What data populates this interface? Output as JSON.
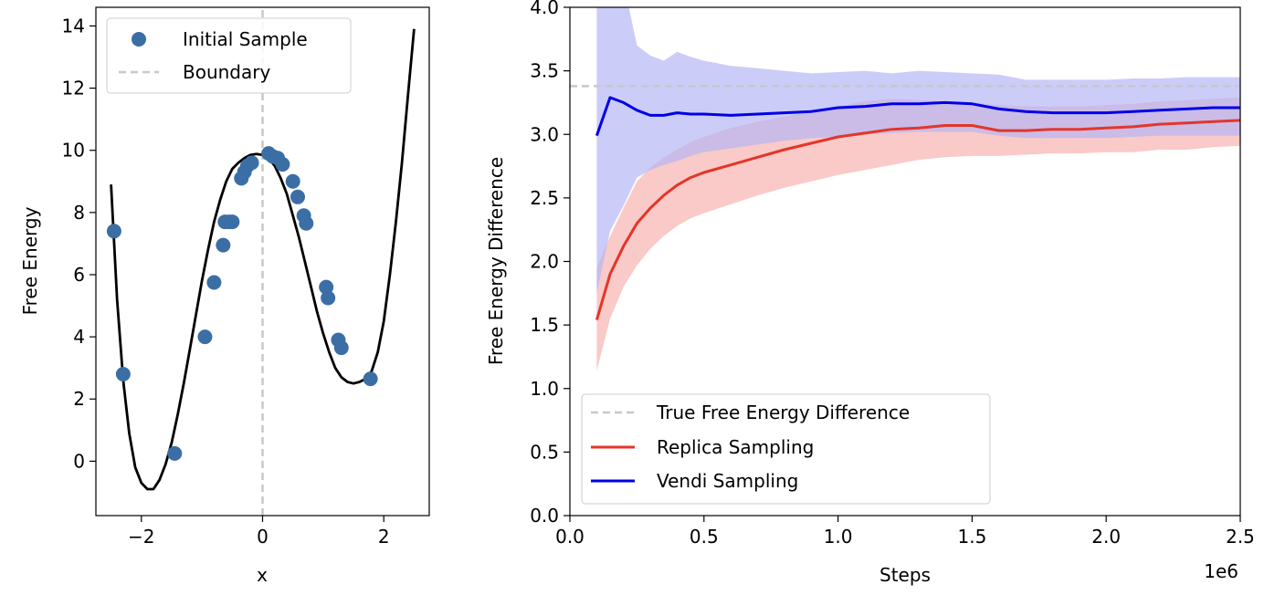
{
  "chart_data": [
    {
      "type": "scatter",
      "xlabel": "x",
      "ylabel": "Free Energy",
      "xlim": [
        -2.75,
        2.75
      ],
      "ylim": [
        -1.75,
        14.6
      ],
      "xticks": [
        -2,
        0,
        2
      ],
      "xtick_labels": [
        "−2",
        "0",
        "2"
      ],
      "yticks": [
        0,
        2,
        4,
        6,
        8,
        10,
        12,
        14
      ],
      "ytick_labels": [
        "0",
        "2",
        "4",
        "6",
        "8",
        "10",
        "12",
        "14"
      ],
      "legend_position": "top-left",
      "colors": {
        "scatter": "#3b6ea5",
        "curve": "#000000",
        "boundary": "#c8c8c8"
      },
      "curve": {
        "name": "",
        "x": [
          -2.5,
          -2.4,
          -2.3,
          -2.2,
          -2.1,
          -2.0,
          -1.9,
          -1.8,
          -1.7,
          -1.6,
          -1.5,
          -1.4,
          -1.3,
          -1.2,
          -1.1,
          -1.0,
          -0.9,
          -0.8,
          -0.7,
          -0.6,
          -0.5,
          -0.4,
          -0.3,
          -0.2,
          -0.1,
          0.0,
          0.1,
          0.2,
          0.3,
          0.4,
          0.5,
          0.6,
          0.7,
          0.8,
          0.9,
          1.0,
          1.1,
          1.2,
          1.3,
          1.4,
          1.5,
          1.6,
          1.7,
          1.8,
          1.9,
          2.0,
          2.1,
          2.2,
          2.3,
          2.4,
          2.5
        ],
        "y": [
          8.9,
          5.2,
          2.6,
          0.9,
          -0.2,
          -0.7,
          -0.9,
          -0.9,
          -0.6,
          -0.1,
          0.6,
          1.5,
          2.5,
          3.6,
          4.7,
          5.8,
          6.8,
          7.7,
          8.4,
          9.0,
          9.4,
          9.6,
          9.75,
          9.85,
          9.88,
          9.85,
          9.75,
          9.5,
          9.1,
          8.6,
          7.9,
          7.2,
          6.4,
          5.6,
          4.8,
          4.1,
          3.5,
          3.0,
          2.7,
          2.55,
          2.5,
          2.55,
          2.65,
          2.9,
          3.5,
          4.5,
          6.0,
          7.7,
          9.6,
          11.8,
          13.9
        ]
      },
      "series": [
        {
          "name": "Initial Sample",
          "x": [
            -2.45,
            -2.3,
            -1.45,
            -0.95,
            -0.8,
            -0.65,
            -0.62,
            -0.55,
            -0.5,
            -0.35,
            -0.3,
            -0.25,
            -0.18,
            0.1,
            0.17,
            0.25,
            0.33,
            0.5,
            0.58,
            0.68,
            0.72,
            1.05,
            1.08,
            1.25,
            1.3,
            1.78
          ],
          "y": [
            7.4,
            2.8,
            0.25,
            4.0,
            5.75,
            6.95,
            7.7,
            7.7,
            7.7,
            9.1,
            9.3,
            9.5,
            9.6,
            9.9,
            9.8,
            9.75,
            9.55,
            9.0,
            8.5,
            7.9,
            7.65,
            5.6,
            5.25,
            3.9,
            3.65,
            2.65
          ]
        },
        {
          "name": "Boundary",
          "x": [
            0,
            0
          ],
          "y": [
            -1.75,
            14.6
          ]
        }
      ]
    },
    {
      "type": "line",
      "xlabel": "Steps",
      "ylabel": "Free Energy Difference",
      "x_offset_text": "1e6",
      "xlim": [
        0,
        2.5
      ],
      "ylim": [
        0,
        4.0
      ],
      "xticks": [
        0,
        0.5,
        1.0,
        1.5,
        2.0,
        2.5
      ],
      "xtick_labels": [
        "0.0",
        "0.5",
        "1.0",
        "1.5",
        "2.0",
        "2.5"
      ],
      "yticks": [
        0,
        0.5,
        1.0,
        1.5,
        2.0,
        2.5,
        3.0,
        3.5,
        4.0
      ],
      "ytick_labels": [
        "0.0",
        "0.5",
        "1.0",
        "1.5",
        "2.0",
        "2.5",
        "3.0",
        "3.5",
        "4.0"
      ],
      "legend_position": "bottom-left",
      "reference": {
        "name": "True Free Energy Difference",
        "y": 3.38,
        "color": "#c8c8c8"
      },
      "x": [
        0.1,
        0.15,
        0.2,
        0.25,
        0.3,
        0.35,
        0.4,
        0.45,
        0.5,
        0.6,
        0.7,
        0.8,
        0.9,
        1.0,
        1.1,
        1.2,
        1.3,
        1.4,
        1.5,
        1.6,
        1.7,
        1.8,
        1.9,
        2.0,
        2.1,
        2.2,
        2.3,
        2.4,
        2.5
      ],
      "series": [
        {
          "name": "Replica Sampling",
          "color": "#e4352a",
          "band_color": "#f5a6a2",
          "values": [
            1.54,
            1.9,
            2.12,
            2.3,
            2.42,
            2.52,
            2.6,
            2.66,
            2.7,
            2.76,
            2.82,
            2.88,
            2.93,
            2.98,
            3.01,
            3.04,
            3.05,
            3.07,
            3.07,
            3.03,
            3.03,
            3.04,
            3.04,
            3.05,
            3.06,
            3.08,
            3.09,
            3.1,
            3.11
          ],
          "lower": [
            1.14,
            1.55,
            1.8,
            1.97,
            2.1,
            2.2,
            2.28,
            2.34,
            2.38,
            2.45,
            2.52,
            2.58,
            2.63,
            2.68,
            2.72,
            2.76,
            2.8,
            2.82,
            2.83,
            2.83,
            2.84,
            2.85,
            2.85,
            2.86,
            2.86,
            2.88,
            2.88,
            2.9,
            2.91
          ],
          "upper": [
            1.95,
            2.2,
            2.42,
            2.63,
            2.74,
            2.82,
            2.88,
            2.94,
            2.98,
            3.05,
            3.1,
            3.14,
            3.18,
            3.22,
            3.26,
            3.28,
            3.27,
            3.26,
            3.25,
            3.23,
            3.22,
            3.22,
            3.22,
            3.23,
            3.24,
            3.26,
            3.27,
            3.28,
            3.29
          ]
        },
        {
          "name": "Vendi Sampling",
          "color": "#0000e6",
          "band_color": "#b6b6f5",
          "values": [
            2.99,
            3.29,
            3.25,
            3.19,
            3.15,
            3.15,
            3.17,
            3.16,
            3.16,
            3.15,
            3.16,
            3.17,
            3.18,
            3.21,
            3.22,
            3.24,
            3.24,
            3.25,
            3.24,
            3.2,
            3.18,
            3.17,
            3.17,
            3.17,
            3.18,
            3.19,
            3.2,
            3.21,
            3.21
          ],
          "lower": [
            1.75,
            2.24,
            2.44,
            2.66,
            2.72,
            2.76,
            2.79,
            2.83,
            2.86,
            2.89,
            2.92,
            2.95,
            2.97,
            2.98,
            3.0,
            3.01,
            3.02,
            3.02,
            3.02,
            2.99,
            2.97,
            2.97,
            2.97,
            2.97,
            2.98,
            2.99,
            2.99,
            2.99,
            2.99
          ],
          "upper": [
            4.2,
            4.2,
            4.2,
            3.7,
            3.62,
            3.58,
            3.65,
            3.61,
            3.58,
            3.54,
            3.52,
            3.5,
            3.48,
            3.49,
            3.5,
            3.48,
            3.5,
            3.49,
            3.48,
            3.47,
            3.43,
            3.43,
            3.43,
            3.43,
            3.44,
            3.44,
            3.45,
            3.45,
            3.45
          ]
        }
      ]
    }
  ]
}
